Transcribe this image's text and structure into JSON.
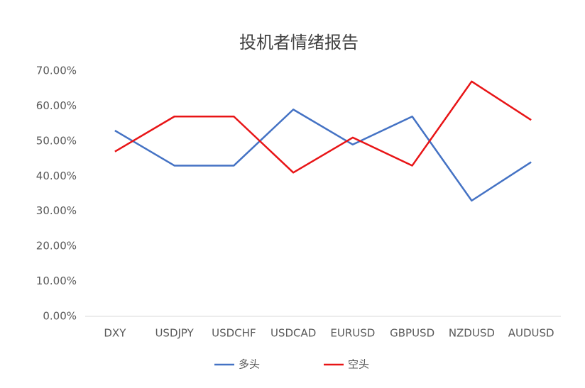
{
  "chart_data": {
    "type": "line",
    "title": "投机者情绪报告",
    "categories": [
      "DXY",
      "USDJPY",
      "USDCHF",
      "USDCAD",
      "EURUSD",
      "GBPUSD",
      "NZDUSD",
      "AUDUSD"
    ],
    "series": [
      {
        "name": "多头",
        "color": "#4472c4",
        "values": [
          53,
          43,
          43,
          59,
          49,
          57,
          33,
          44
        ]
      },
      {
        "name": "空头",
        "color": "#e81416",
        "values": [
          47,
          57,
          57,
          41,
          51,
          43,
          67,
          56
        ]
      }
    ],
    "ylim": [
      0,
      70
    ],
    "yticks": [
      {
        "value": 0,
        "label": "0.00%"
      },
      {
        "value": 10,
        "label": "10.00%"
      },
      {
        "value": 20,
        "label": "20.00%"
      },
      {
        "value": 30,
        "label": "30.00%"
      },
      {
        "value": 40,
        "label": "40.00%"
      },
      {
        "value": 50,
        "label": "50.00%"
      },
      {
        "value": 60,
        "label": "60.00%"
      },
      {
        "value": 70,
        "label": "70.00%"
      }
    ],
    "grid": false,
    "legend": "bottom"
  }
}
